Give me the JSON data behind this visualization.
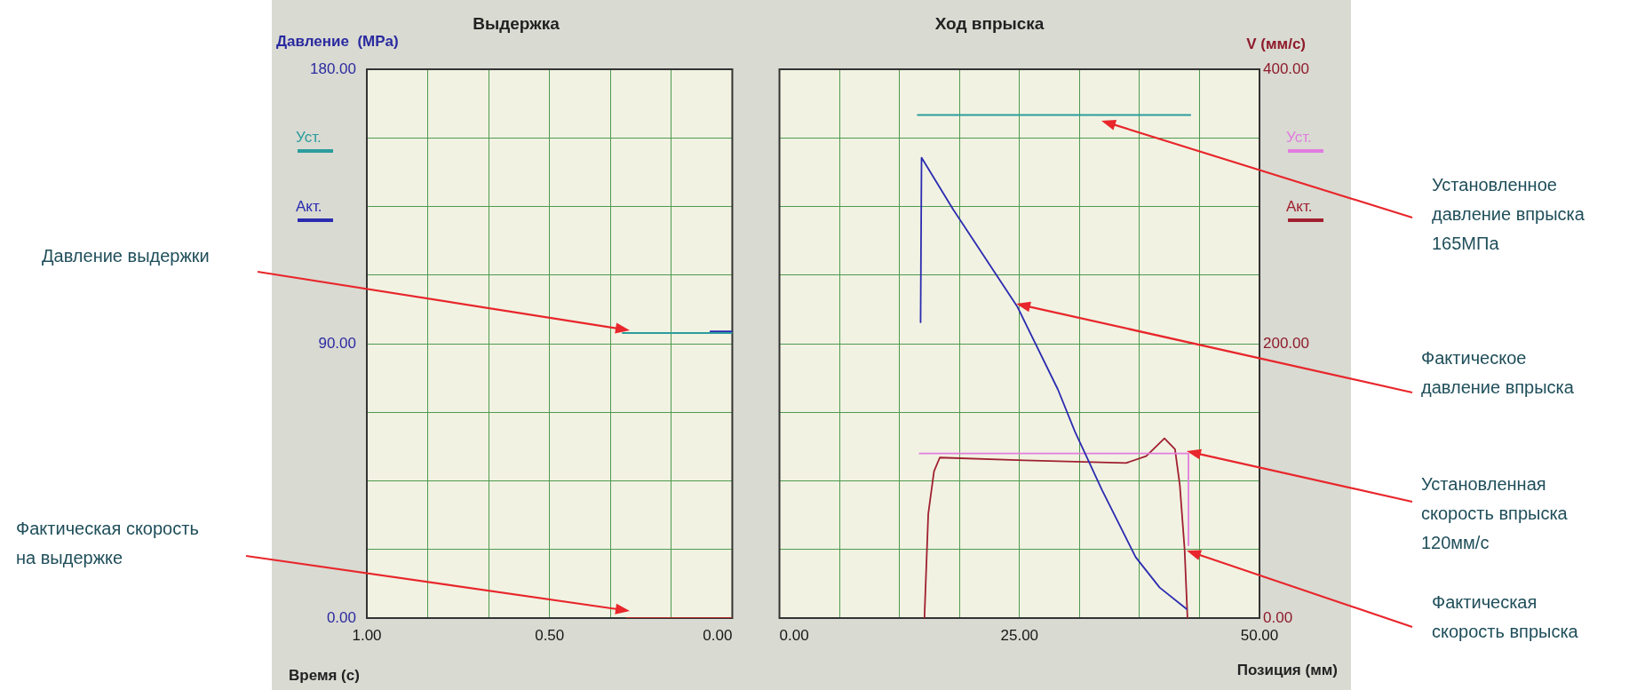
{
  "chart_data": [
    {
      "type": "line",
      "title": "Выдержка",
      "xlabel": "Время (с)",
      "ylabel": "Давление  (MPa)",
      "xlim": [
        1,
        0
      ],
      "xticks": [
        {
          "value": 1,
          "label": "1.00"
        },
        {
          "value": 0.833,
          "label": null
        },
        {
          "value": 0.667,
          "label": null
        },
        {
          "value": 0.5,
          "label": "0.50"
        },
        {
          "value": 0.333,
          "label": null
        },
        {
          "value": 0.167,
          "label": null
        },
        {
          "value": 0,
          "label": "0.00"
        }
      ],
      "ylim": [
        0,
        180
      ],
      "yticks": [
        {
          "value": 0,
          "label": "0.00"
        },
        {
          "value": 22.5,
          "label": null
        },
        {
          "value": 45,
          "label": null
        },
        {
          "value": 67.5,
          "label": null
        },
        {
          "value": 90,
          "label": "90.00"
        },
        {
          "value": 112.5,
          "label": null
        },
        {
          "value": 135,
          "label": null
        },
        {
          "value": 157.5,
          "label": null
        },
        {
          "value": 180,
          "label": "180.00"
        }
      ],
      "grid": true,
      "legend": "left",
      "marker": "none",
      "line_style": "solid",
      "series": [
        {
          "name": "Уст.",
          "color": "#2a9d9d",
          "x": [
            0.3,
            0
          ],
          "values": [
            93.5,
            93.5
          ]
        },
        {
          "name": "Акт.",
          "color": "#2b2bb0",
          "x": [
            0.06,
            0
          ],
          "values": [
            94,
            94
          ]
        },
        {
          "color": "#b02a2a",
          "x": [
            0.29,
            0
          ],
          "values": [
            0,
            0
          ]
        }
      ],
      "annotations": [
        "Давление выдержки",
        "Фактическая скорость на выдержке"
      ]
    },
    {
      "type": "line",
      "title": "Ход впрыска",
      "xlabel": "Позиция (мм)",
      "y2label": "V (мм/с)",
      "xlim": [
        0,
        50
      ],
      "xticks": [
        {
          "value": 0,
          "label": "0.00"
        },
        {
          "value": 6.25,
          "label": null
        },
        {
          "value": 12.5,
          "label": null
        },
        {
          "value": 18.75,
          "label": null
        },
        {
          "value": 25,
          "label": "25.00"
        },
        {
          "value": 31.25,
          "label": null
        },
        {
          "value": 37.5,
          "label": null
        },
        {
          "value": 43.75,
          "label": null
        },
        {
          "value": 50,
          "label": "50.00"
        }
      ],
      "ylim": [
        0,
        180
      ],
      "tick_labels": "x",
      "y2lim": [
        0,
        400
      ],
      "y2ticks": [
        {
          "value": 0,
          "label": "0.00"
        },
        {
          "value": 50,
          "label": null
        },
        {
          "value": 100,
          "label": null
        },
        {
          "value": 150,
          "label": null
        },
        {
          "value": 200,
          "label": "200.00"
        },
        {
          "value": 250,
          "label": null
        },
        {
          "value": 300,
          "label": null
        },
        {
          "value": 350,
          "label": null
        },
        {
          "value": 400,
          "label": "400.00"
        }
      ],
      "grid": true,
      "legend": "right",
      "marker": "none",
      "line_style": "solid",
      "series": [
        {
          "color": "#2a9d9d",
          "x": [
            14.4,
            42.8
          ],
          "values": [
            165,
            165
          ]
        },
        {
          "color": "#2b2bb0",
          "x": [
            14.7,
            14.8,
            18.1,
            24.8,
            29,
            30.8,
            33.6,
            37.1,
            39.6,
            42.4
          ],
          "values": [
            97,
            151,
            134,
            102,
            75,
            61,
            42,
            20,
            10,
            3
          ]
        },
        {
          "name": "Уст.",
          "color": "#e27ce0",
          "axis": "y2",
          "x": [
            14.6,
            42.6,
            42.6
          ],
          "values": [
            120,
            120,
            53
          ]
        },
        {
          "name": "Акт.",
          "color": "#a02030",
          "axis": "y2",
          "x": [
            15.1,
            15.5,
            16.1,
            16.7,
            25.5,
            36.1,
            38.2,
            40.1,
            41.2,
            41.7,
            42.2,
            42.5
          ],
          "values": [
            0,
            76,
            107,
            117,
            115,
            113,
            118,
            131,
            123,
            97,
            50,
            0
          ]
        }
      ],
      "annotations": [
        "Установленное давление впрыска 165МПа",
        "Фактическое давление впрыска",
        "Установленная скорость впрыска 120мм/с",
        "Фактическая скорость впрыска"
      ]
    }
  ]
}
